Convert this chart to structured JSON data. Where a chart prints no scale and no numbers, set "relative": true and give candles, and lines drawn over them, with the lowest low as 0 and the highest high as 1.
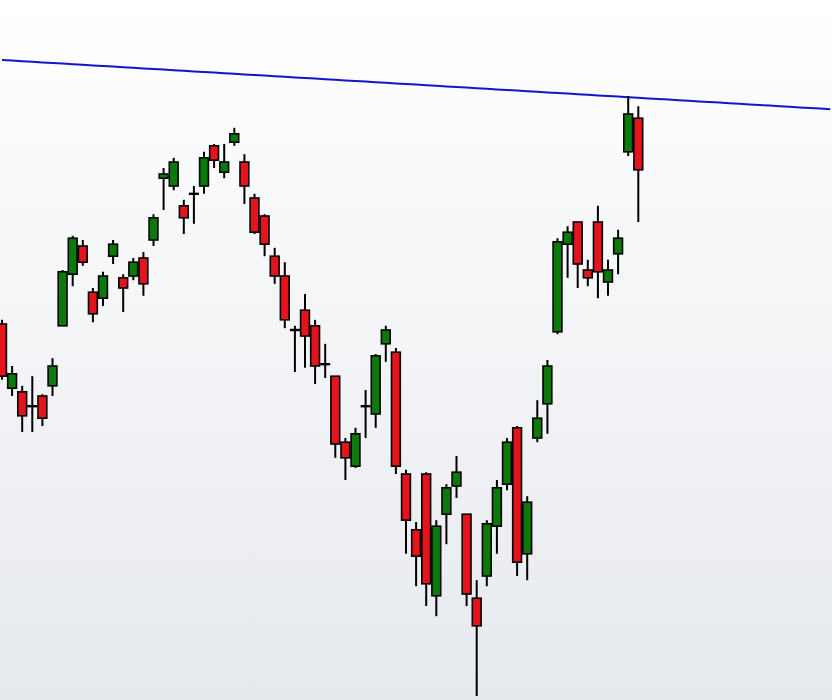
{
  "chart_data": {
    "type": "candlestick",
    "relative": true,
    "categories": [
      null,
      null,
      null,
      null,
      null,
      null,
      null,
      null,
      null,
      null,
      null,
      null,
      null,
      null,
      null,
      null,
      null,
      null,
      null,
      null,
      null,
      null,
      null,
      null,
      null,
      null,
      null,
      null,
      null,
      null,
      null,
      null,
      null,
      null,
      null,
      null,
      null,
      null,
      null,
      null,
      null,
      null,
      null,
      null,
      null,
      null,
      null,
      null,
      null,
      null,
      null,
      null,
      null,
      null,
      null,
      null,
      null,
      null,
      null,
      null,
      null,
      null,
      null,
      null,
      null,
      null,
      null,
      null,
      null,
      null,
      null,
      null,
      null,
      null,
      null,
      null,
      null,
      null,
      null,
      null,
      null,
      null,
      null
    ],
    "series": [
      {
        "colors": [
          "#e3141c",
          "#0b7a0b",
          "#e3141c",
          "#000000",
          "#e3141c",
          "#0b7a0b",
          "#0b7a0b",
          "#0b7a0b",
          "#e3141c",
          "#e3141c",
          "#0b7a0b",
          "#0b7a0b",
          "#e3141c",
          "#0b7a0b",
          "#e3141c",
          "#0b7a0b",
          "#0b7a0b",
          "#0b7a0b",
          "#e3141c",
          "#000000",
          "#0b7a0b",
          "#e3141c",
          "#0b7a0b",
          "#0b7a0b",
          "#e3141c",
          "#e3141c",
          "#e3141c",
          "#e3141c",
          "#e3141c",
          "#000000",
          "#e3141c",
          "#e3141c",
          "#000000",
          "#e3141c",
          "#e3141c",
          "#0b7a0b",
          "#000000",
          "#0b7a0b",
          "#0b7a0b",
          "#e3141c",
          "#e3141c",
          "#e3141c",
          "#e3141c",
          "#0b7a0b",
          "#0b7a0b",
          "#0b7a0b",
          "#e3141c",
          "#e3141c",
          "#0b7a0b",
          "#0b7a0b",
          "#0b7a0b",
          "#e3141c",
          "#0b7a0b",
          "#0b7a0b",
          "#0b7a0b",
          "#0b7a0b",
          "#0b7a0b",
          "#e3141c",
          "#e3141c",
          "#e3141c",
          "#0b7a0b",
          "#0b7a0b",
          "#0b7a0b",
          "#e3141c",
          null,
          null,
          null,
          null,
          null,
          null,
          null,
          null,
          null,
          null,
          null,
          null,
          null,
          null,
          null,
          null,
          null,
          null,
          null
        ],
        "ohlc": [
          [
            0.62,
            0.627,
            0.527,
            0.533
          ],
          [
            0.513,
            0.55,
            0.5,
            0.537
          ],
          [
            0.507,
            0.517,
            0.44,
            0.467
          ],
          [
            0.48,
            0.533,
            0.44,
            0.483
          ],
          [
            0.5,
            0.503,
            0.45,
            0.463
          ],
          [
            0.517,
            0.563,
            0.5,
            0.55
          ],
          [
            0.617,
            0.71,
            0.617,
            0.707
          ],
          [
            0.703,
            0.767,
            0.683,
            0.763
          ],
          [
            0.75,
            0.76,
            0.717,
            0.723
          ],
          [
            0.673,
            0.68,
            0.623,
            0.637
          ],
          [
            0.663,
            0.707,
            0.65,
            0.7
          ],
          [
            0.733,
            0.76,
            0.72,
            0.753
          ],
          [
            0.697,
            0.703,
            0.64,
            0.68
          ],
          [
            0.7,
            0.73,
            0.693,
            0.723
          ],
          [
            0.73,
            0.74,
            0.667,
            0.687
          ],
          [
            0.76,
            0.803,
            0.75,
            0.797
          ],
          [
            0.863,
            0.88,
            0.81,
            0.87
          ],
          [
            0.85,
            0.897,
            0.843,
            0.89
          ],
          [
            0.817,
            0.827,
            0.77,
            0.797
          ],
          [
            0.837,
            0.85,
            0.787,
            0.837
          ],
          [
            0.85,
            0.907,
            0.837,
            0.897
          ],
          [
            0.917,
            0.92,
            0.88,
            0.893
          ],
          [
            0.873,
            0.92,
            0.863,
            0.89
          ],
          [
            0.923,
            0.947,
            0.917,
            0.937
          ],
          [
            0.89,
            0.903,
            0.82,
            0.85
          ],
          [
            0.83,
            0.837,
            0.77,
            0.773
          ],
          [
            0.8,
            0.803,
            0.733,
            0.753
          ],
          [
            0.733,
            0.747,
            0.687,
            0.7
          ],
          [
            0.7,
            0.723,
            0.613,
            0.627
          ],
          [
            0.61,
            0.617,
            0.54,
            0.61
          ],
          [
            0.643,
            0.67,
            0.547,
            0.6
          ],
          [
            0.617,
            0.627,
            0.52,
            0.55
          ],
          [
            0.553,
            0.587,
            0.53,
            0.553
          ],
          [
            0.533,
            0.533,
            0.397,
            0.42
          ],
          [
            0.423,
            0.43,
            0.36,
            0.397
          ],
          [
            0.383,
            0.447,
            0.38,
            0.437
          ],
          [
            0.483,
            0.51,
            0.43,
            0.483
          ],
          [
            0.47,
            0.57,
            0.447,
            0.567
          ],
          [
            0.587,
            0.617,
            0.557,
            0.61
          ],
          [
            0.573,
            0.58,
            0.37,
            0.383
          ],
          [
            0.37,
            0.377,
            0.237,
            0.293
          ],
          [
            0.277,
            0.29,
            0.183,
            0.233
          ],
          [
            0.37,
            0.373,
            0.15,
            0.187
          ],
          [
            0.167,
            0.293,
            0.133,
            0.283
          ],
          [
            0.303,
            0.353,
            0.253,
            0.347
          ],
          [
            0.35,
            0.4,
            0.33,
            0.373
          ],
          [
            0.303,
            0.303,
            0.15,
            0.17
          ],
          [
            0.163,
            0.193,
            0,
            0.117
          ],
          [
            0.2,
            0.293,
            0.183,
            0.287
          ],
          [
            0.283,
            0.36,
            0.237,
            0.347
          ],
          [
            0.353,
            0.43,
            0.343,
            0.423
          ],
          [
            0.447,
            0.45,
            0.2,
            0.223
          ],
          [
            0.237,
            0.333,
            0.193,
            0.323
          ],
          [
            0.43,
            0.493,
            0.423,
            0.463
          ],
          [
            0.487,
            0.56,
            0.437,
            0.55
          ],
          [
            0.607,
            0.763,
            0.603,
            0.757
          ],
          [
            0.753,
            0.783,
            0.697,
            0.773
          ],
          [
            0.79,
            0.79,
            0.68,
            0.72
          ],
          [
            0.71,
            0.727,
            0.683,
            0.697
          ],
          [
            0.79,
            0.817,
            0.663,
            0.707
          ],
          [
            0.69,
            0.727,
            0.667,
            0.71
          ],
          [
            0.737,
            0.777,
            0.703,
            0.763
          ],
          [
            0.907,
            1,
            0.9,
            0.97
          ],
          [
            0.963,
            0.983,
            0.79,
            0.877
          ],
          null,
          null,
          null,
          null,
          null,
          null,
          null,
          null,
          null,
          null,
          null,
          null,
          null,
          null,
          null,
          null,
          null,
          null,
          null
        ]
      },
      {
        "type": "line",
        "color": "#1414c8",
        "line_style": "solid",
        "marker": "none",
        "values": [
          1.06,
          1.059,
          1.058,
          1.057,
          1.056,
          1.055,
          1.054,
          1.053,
          1.052,
          1.051,
          1.05,
          1.049,
          1.048,
          1.047,
          1.046,
          1.045,
          1.044,
          1.043,
          1.042,
          1.041,
          1.04,
          1.039,
          1.038,
          1.037,
          1.036,
          1.035,
          1.034,
          1.033,
          1.032,
          1.031,
          1.03,
          1.029,
          1.028,
          1.027,
          1.026,
          1.025,
          1.024,
          1.023,
          1.022,
          1.021,
          1.02,
          1.019,
          1.018,
          1.017,
          1.016,
          1.015,
          1.014,
          1.013,
          1.012,
          1.011,
          1.01,
          1.009,
          1.008,
          1.007,
          1.006,
          1.005,
          1.004,
          1.003,
          1.002,
          1.001,
          1,
          0.999,
          0.998,
          0.997,
          0.996,
          0.995,
          0.994,
          0.993,
          0.992,
          0.991,
          0.99,
          0.989,
          0.988,
          0.987,
          0.986,
          0.985,
          0.984,
          0.983,
          0.982,
          0.981,
          0.98,
          0.979,
          0.978
        ]
      }
    ]
  }
}
